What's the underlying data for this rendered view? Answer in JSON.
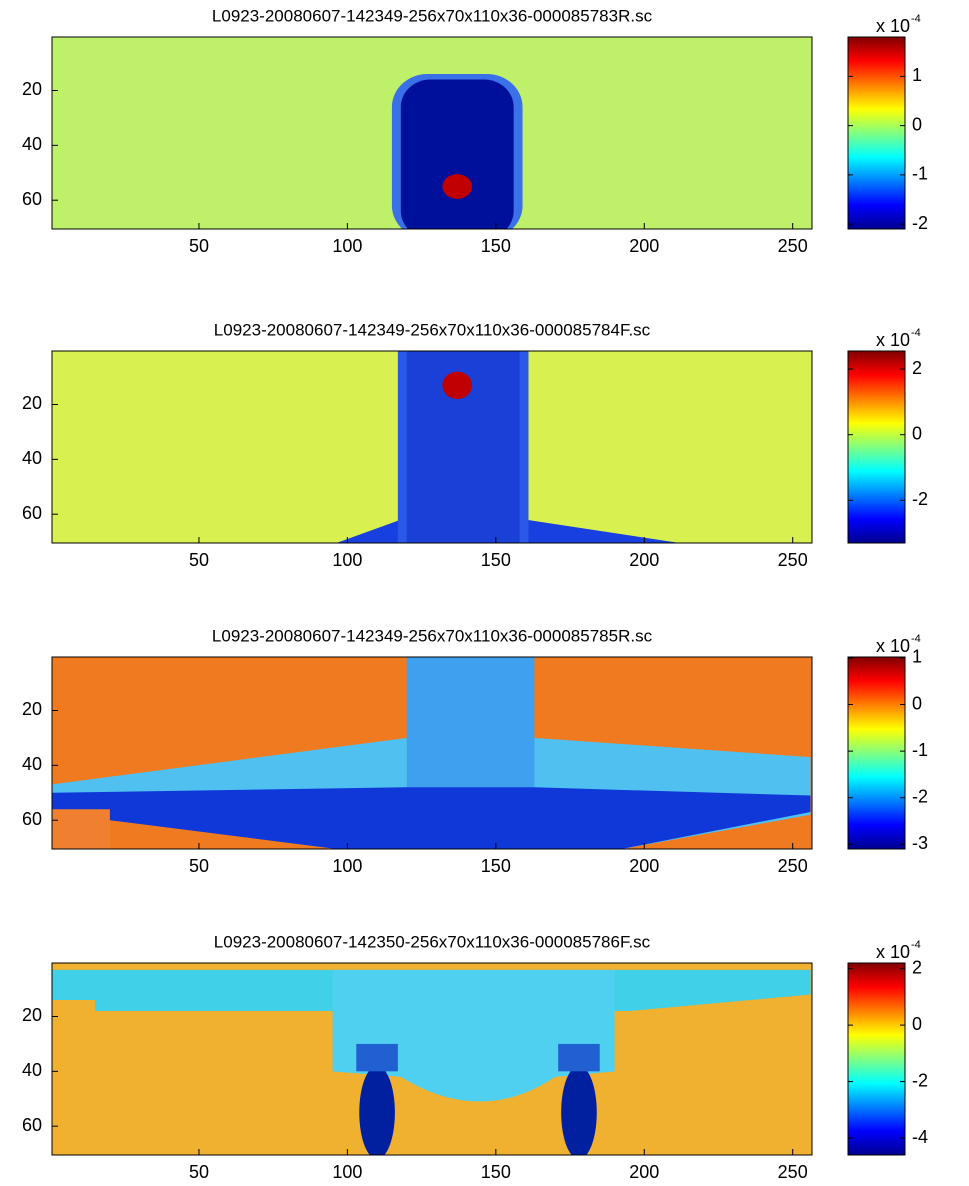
{
  "chart_data": [
    {
      "type": "heatmap",
      "title": "L0923-20080607-142349-256x70x110x36-000085783R.sc",
      "xlim": [
        0.5,
        256.5
      ],
      "ylim": [
        0.5,
        70.5
      ],
      "xticks": [
        50,
        100,
        150,
        200,
        250
      ],
      "yticks": [
        20,
        40,
        60
      ],
      "colorbar": {
        "clim": [
          -2.1,
          1.8
        ],
        "ticks": [
          -2,
          -1,
          0,
          1
        ],
        "label": "x 10",
        "exponent": "-4"
      }
    },
    {
      "type": "heatmap",
      "title": "L0923-20080607-142349-256x70x110x36-000085784F.sc",
      "xlim": [
        0.5,
        256.5
      ],
      "ylim": [
        0.5,
        70.5
      ],
      "xticks": [
        50,
        100,
        150,
        200,
        250
      ],
      "yticks": [
        20,
        40,
        60
      ],
      "colorbar": {
        "clim": [
          -3.3,
          2.55
        ],
        "ticks": [
          -2,
          0,
          2
        ],
        "label": "x 10",
        "exponent": "-4"
      }
    },
    {
      "type": "heatmap",
      "title": "L0923-20080607-142349-256x70x110x36-000085785R.sc",
      "xlim": [
        0.5,
        256.5
      ],
      "ylim": [
        0.5,
        70.5
      ],
      "xticks": [
        50,
        100,
        150,
        200,
        250
      ],
      "yticks": [
        20,
        40,
        60
      ],
      "colorbar": {
        "clim": [
          -3.1,
          1.02
        ],
        "ticks": [
          -3,
          -2,
          -1,
          0,
          1
        ],
        "label": "x 10",
        "exponent": "-4"
      }
    },
    {
      "type": "heatmap",
      "title": "L0923-20080607-142350-256x70x110x36-000085786F.sc",
      "xlim": [
        0.5,
        256.5
      ],
      "ylim": [
        0.5,
        70.5
      ],
      "xticks": [
        50,
        100,
        150,
        200,
        250
      ],
      "yticks": [
        20,
        40,
        60
      ],
      "colorbar": {
        "clim": [
          -4.6,
          2.2
        ],
        "ticks": [
          -4,
          -2,
          0,
          2
        ],
        "label": "x 10",
        "exponent": "-4"
      }
    }
  ]
}
